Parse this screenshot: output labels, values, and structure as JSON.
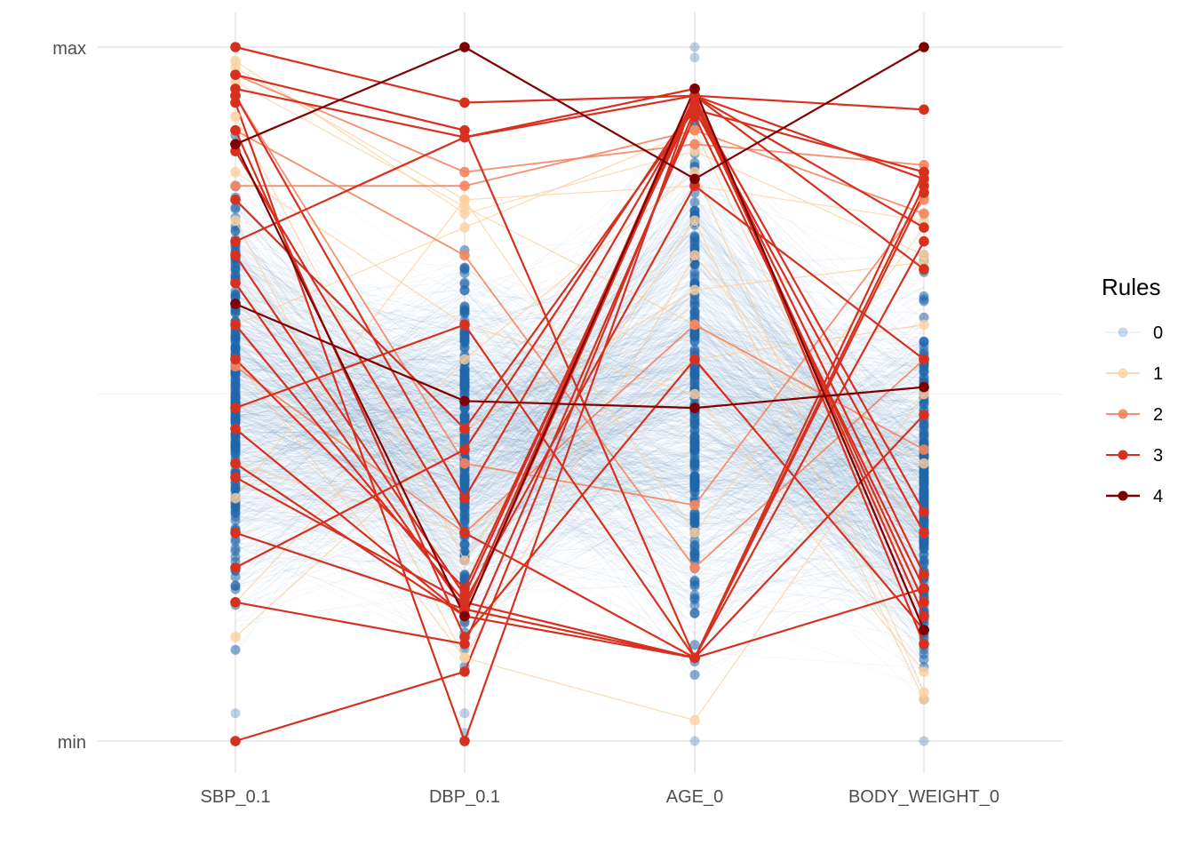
{
  "chart_data": {
    "type": "parallel-coordinates",
    "title": "",
    "xlabel": "",
    "ylabel": "",
    "axes": [
      "SBP_0.1",
      "DBP_0.1",
      "AGE_0",
      "BODY_WEIGHT_0"
    ],
    "y_ticks": [
      "min",
      "max"
    ],
    "y_scale": "per-axis min-max normalized",
    "ylim": [
      0,
      1
    ],
    "grid": true,
    "legend": {
      "title": "Rules",
      "position": "right",
      "entries": [
        {
          "label": "0",
          "color": "#2166ac",
          "opacity": 0.25
        },
        {
          "label": "1",
          "color": "#fdcf9e",
          "opacity": 0.8
        },
        {
          "label": "2",
          "color": "#f4845f",
          "opacity": 0.9
        },
        {
          "label": "3",
          "color": "#d7301f",
          "opacity": 1
        },
        {
          "label": "4",
          "color": "#7f0000",
          "opacity": 1
        }
      ]
    },
    "highlighted_series": [
      {
        "rule": 4,
        "values": [
          0.86,
          1.0,
          0.81,
          1.0
        ]
      },
      {
        "rule": 4,
        "values": [
          0.63,
          0.49,
          0.48,
          0.51
        ]
      },
      {
        "rule": 4,
        "values": [
          0.86,
          0.18,
          0.94,
          0.16
        ]
      },
      {
        "rule": 3,
        "values": [
          1.0,
          0.92,
          0.93,
          0.91
        ]
      },
      {
        "rule": 3,
        "values": [
          0.0,
          0.1,
          0.91,
          0.82
        ]
      },
      {
        "rule": 3,
        "values": [
          0.96,
          0.88,
          0.12,
          0.82
        ]
      },
      {
        "rule": 3,
        "values": [
          0.94,
          0.87,
          0.94,
          0.16
        ]
      },
      {
        "rule": 3,
        "values": [
          0.92,
          0.0,
          0.93,
          0.18
        ]
      },
      {
        "rule": 3,
        "values": [
          0.72,
          0.87,
          0.93,
          0.74
        ]
      },
      {
        "rule": 3,
        "values": [
          0.45,
          0.18,
          0.93,
          0.81
        ]
      },
      {
        "rule": 3,
        "values": [
          0.6,
          0.2,
          0.12,
          0.79
        ]
      },
      {
        "rule": 3,
        "values": [
          0.2,
          0.14,
          0.9,
          0.22
        ]
      },
      {
        "rule": 3,
        "values": [
          0.4,
          0.18,
          0.12,
          0.8
        ]
      },
      {
        "rule": 3,
        "values": [
          0.55,
          0.22,
          0.92,
          0.2
        ]
      },
      {
        "rule": 3,
        "values": [
          0.85,
          0.3,
          0.12,
          0.47
        ]
      },
      {
        "rule": 3,
        "values": [
          0.3,
          0.19,
          0.94,
          0.14
        ]
      },
      {
        "rule": 3,
        "values": [
          0.78,
          0.45,
          0.91,
          0.3
        ]
      },
      {
        "rule": 3,
        "values": [
          0.48,
          0.6,
          0.12,
          0.22
        ]
      },
      {
        "rule": 3,
        "values": [
          0.7,
          0.21,
          0.93,
          0.68
        ]
      },
      {
        "rule": 3,
        "values": [
          0.88,
          0.15,
          0.55,
          0.16
        ]
      },
      {
        "rule": 3,
        "values": [
          0.25,
          0.42,
          0.92,
          0.33
        ]
      },
      {
        "rule": 3,
        "values": [
          0.66,
          0.19,
          0.12,
          0.72
        ]
      },
      {
        "rule": 3,
        "values": [
          0.93,
          0.35,
          0.92,
          0.24
        ]
      },
      {
        "rule": 3,
        "values": [
          0.38,
          0.2,
          0.8,
          0.55
        ]
      },
      {
        "rule": 2,
        "values": [
          0.96,
          0.82,
          0.86,
          0.83
        ]
      },
      {
        "rule": 2,
        "values": [
          0.8,
          0.8,
          0.88,
          0.76
        ]
      },
      {
        "rule": 2,
        "values": [
          0.93,
          0.4,
          0.34,
          0.78
        ]
      },
      {
        "rule": 2,
        "values": [
          0.54,
          0.3,
          0.6,
          0.42
        ]
      },
      {
        "rule": 2,
        "values": [
          0.88,
          0.7,
          0.25,
          0.55
        ]
      },
      {
        "rule": 1,
        "values": [
          0.98,
          0.76,
          0.85,
          0.7
        ]
      },
      {
        "rule": 1,
        "values": [
          0.97,
          0.78,
          0.8,
          0.75
        ]
      },
      {
        "rule": 1,
        "values": [
          0.95,
          0.77,
          0.6,
          0.4
        ]
      },
      {
        "rule": 1,
        "values": [
          0.9,
          0.26,
          0.75,
          0.06
        ]
      },
      {
        "rule": 1,
        "values": [
          0.75,
          0.12,
          0.7,
          0.3
        ]
      },
      {
        "rule": 1,
        "values": [
          0.6,
          0.74,
          0.88,
          0.2
        ]
      },
      {
        "rule": 1,
        "values": [
          0.4,
          0.3,
          0.55,
          0.6
        ]
      },
      {
        "rule": 1,
        "values": [
          0.2,
          0.55,
          0.82,
          0.07
        ]
      },
      {
        "rule": 1,
        "values": [
          0.55,
          0.12,
          0.03,
          0.5
        ]
      },
      {
        "rule": 1,
        "values": [
          0.15,
          0.45,
          0.65,
          0.69
        ]
      },
      {
        "rule": 1,
        "values": [
          0.82,
          0.6,
          0.5,
          0.1
        ]
      },
      {
        "rule": 1,
        "values": [
          0.35,
          0.78,
          0.3,
          0.74
        ]
      }
    ],
    "background_series": {
      "rule": 0,
      "count": 900,
      "axis_ranges": [
        [
          0.05,
          0.95
        ],
        [
          0.05,
          0.78
        ],
        [
          0.02,
          0.98
        ],
        [
          0.0,
          0.75
        ]
      ]
    }
  }
}
